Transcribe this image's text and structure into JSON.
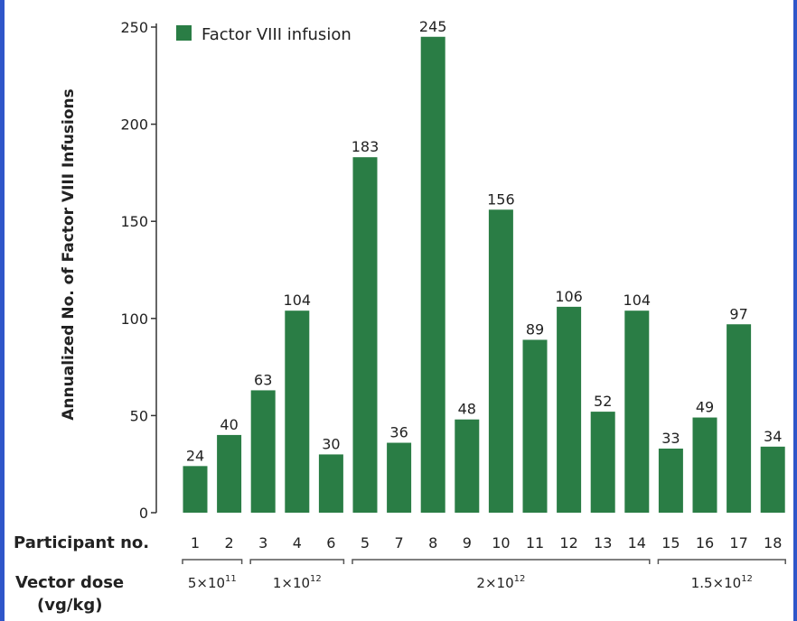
{
  "chart_data": {
    "type": "bar",
    "ylabel": "Annualized No. of Factor VIII Infusions",
    "ylim": [
      0,
      250
    ],
    "yticks": [
      0,
      50,
      100,
      150,
      200,
      250
    ],
    "categories": [
      "1",
      "2",
      "3",
      "4",
      "6",
      "5",
      "7",
      "8",
      "9",
      "10",
      "11",
      "12",
      "13",
      "14",
      "15",
      "16",
      "17",
      "18"
    ],
    "series": [
      {
        "name": "Factor VIII infusion",
        "color": "#2a7d45",
        "values": [
          24,
          40,
          63,
          104,
          30,
          183,
          36,
          245,
          48,
          156,
          89,
          106,
          52,
          104,
          33,
          49,
          97,
          34
        ]
      }
    ],
    "legend": "top-left",
    "participant_label": "Participant no.",
    "dose_label_line1": "Vector dose",
    "dose_label_line2": "(vg/kg)",
    "dose_groups": [
      {
        "mantissa": "5×10",
        "exp": "11",
        "from": 0,
        "to": 1
      },
      {
        "mantissa": "1×10",
        "exp": "12",
        "from": 2,
        "to": 4
      },
      {
        "mantissa": "2×10",
        "exp": "12",
        "from": 5,
        "to": 13
      },
      {
        "mantissa": "1.5×10",
        "exp": "12",
        "from": 14,
        "to": 17
      }
    ]
  }
}
